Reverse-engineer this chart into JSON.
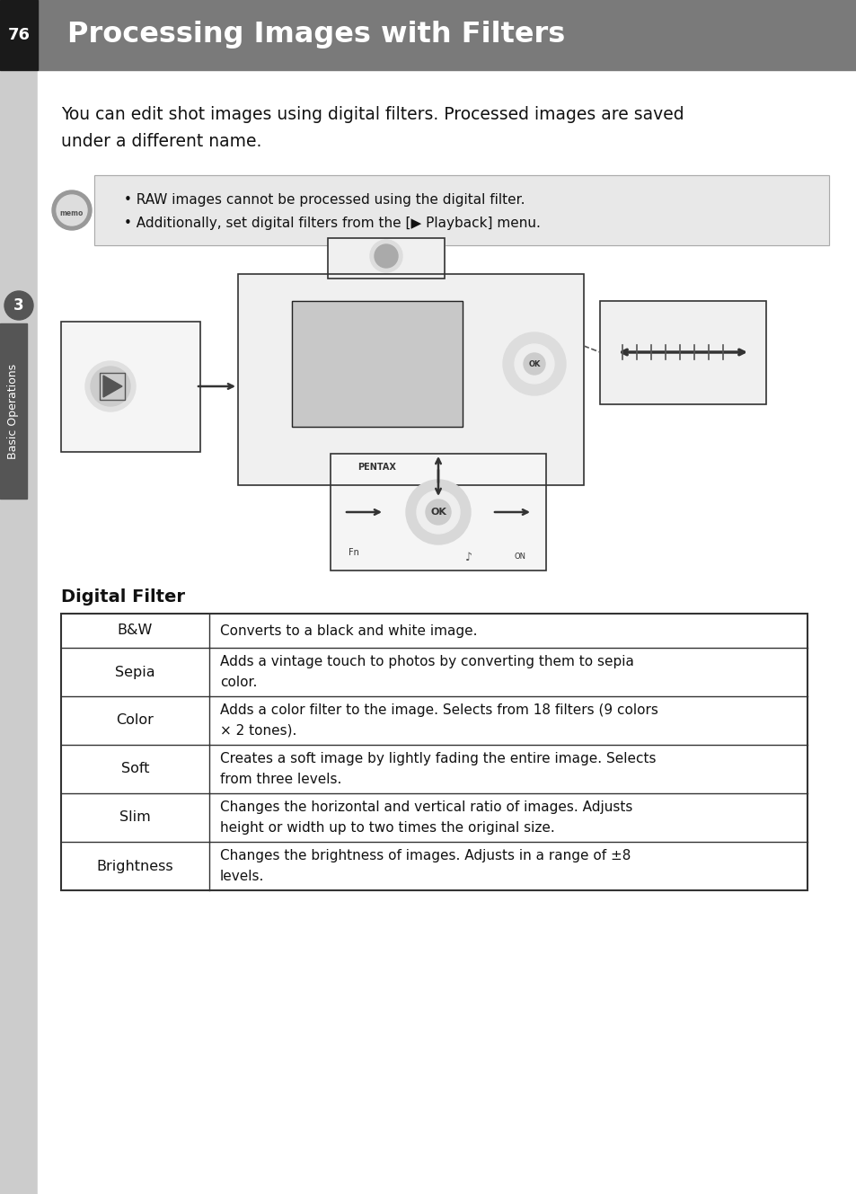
{
  "page_bg": "#e8e8e8",
  "content_bg": "#ffffff",
  "header_bg": "#7a7a7a",
  "header_text": "Processing Images with Filters",
  "header_text_color": "#ffffff",
  "page_num": "76",
  "page_num_bg": "#1a1a1a",
  "page_num_color": "#ffffff",
  "body_text_1": "You can edit shot images using digital filters. Processed images are saved",
  "body_text_2": "under a different name.",
  "memo_bg": "#e8e8e8",
  "memo_bullet1": "RAW images cannot be processed using the digital filter.",
  "memo_bullet2": "Additionally, set digital filters from the [▶ Playback] menu.",
  "section_title": "Digital Filter",
  "table_rows": [
    {
      "label": "B&W",
      "desc": "Converts to a black and white image."
    },
    {
      "label": "Sepia",
      "desc": "Adds a vintage touch to photos by converting them to sepia\ncolor."
    },
    {
      "label": "Color",
      "desc": "Adds a color filter to the image. Selects from 18 filters (9 colors\n× 2 tones)."
    },
    {
      "label": "Soft",
      "desc": "Creates a soft image by lightly fading the entire image. Selects\nfrom three levels."
    },
    {
      "label": "Slim",
      "desc": "Changes the horizontal and vertical ratio of images. Adjusts\nheight or width up to two times the original size."
    },
    {
      "label": "Brightness",
      "desc": "Changes the brightness of images. Adjusts in a range of ±8\nlevels."
    }
  ],
  "side_label": "Basic Operations",
  "side_label_color": "#ffffff",
  "side_tab_bg": "#555555",
  "side_circle_bg": "#555555",
  "side_circle_text": "3"
}
